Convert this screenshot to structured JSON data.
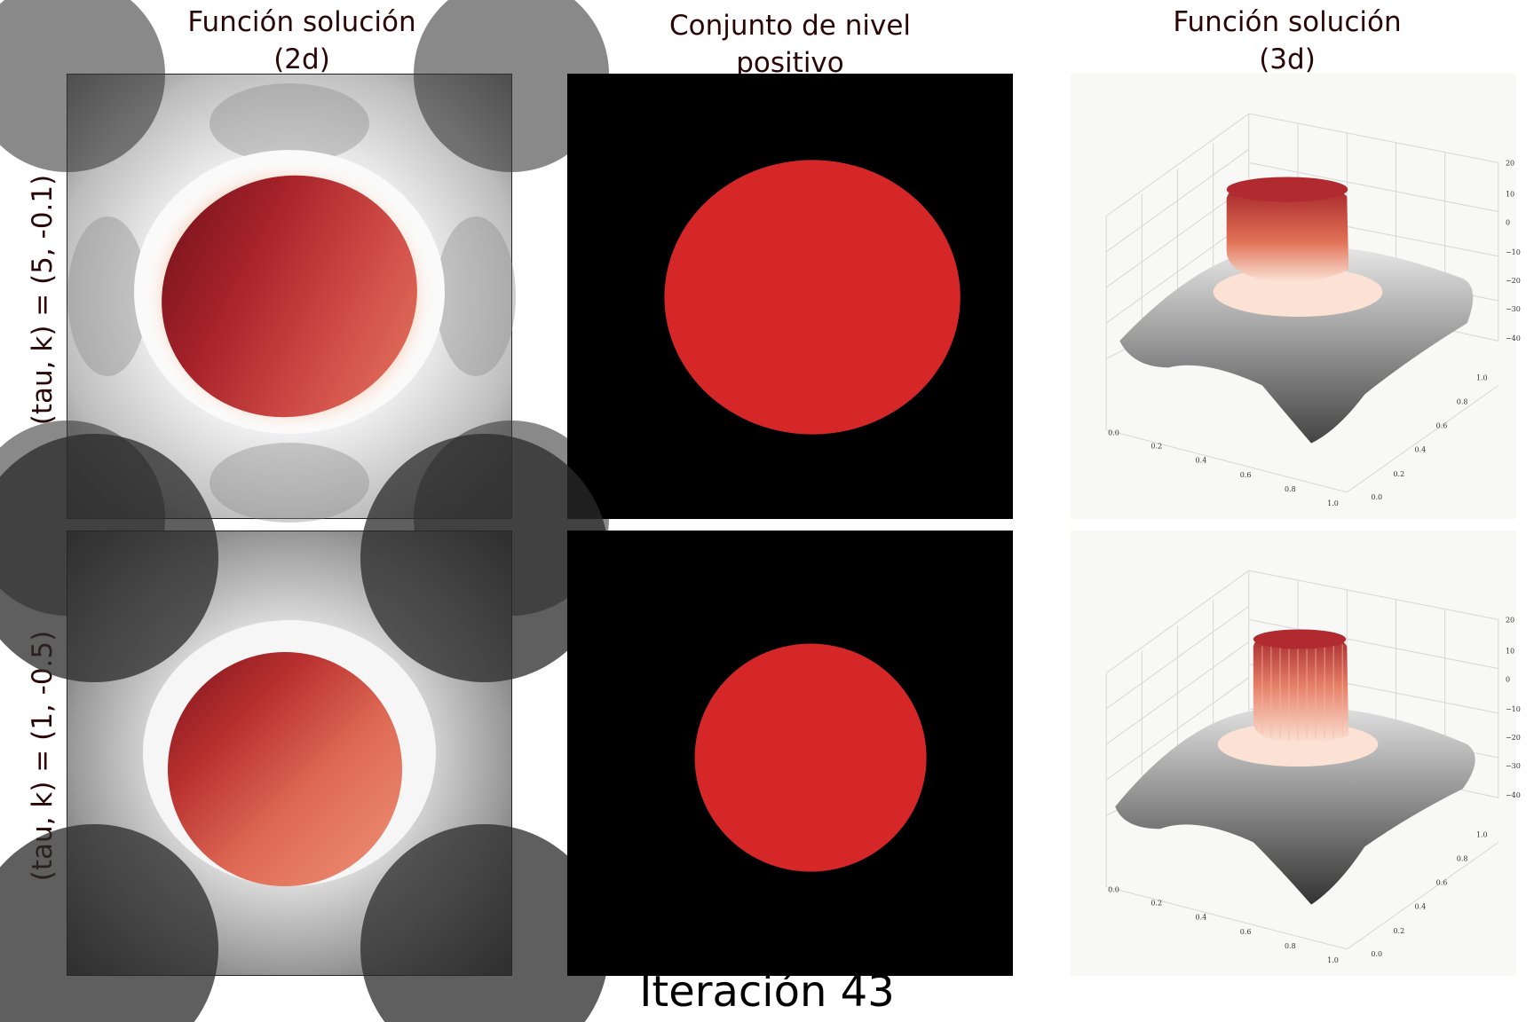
{
  "chart_data": [
    {
      "type": "heatmap",
      "title": "Función solución (2d)",
      "row_label": "(tau, k) = (5, -0.1)",
      "colormap": [
        "#222222",
        "#f4f4f4",
        "#f7c8b0",
        "#9e1a24"
      ]
    },
    {
      "type": "heatmap",
      "title": "Conjunto de nivel positivo",
      "colors": {
        "negative": "#000000",
        "positive": "#d62728"
      }
    },
    {
      "type": "surface",
      "title": "Función solución (3d)",
      "zticks": [
        "20",
        "10",
        "0",
        "−10",
        "−20",
        "−30",
        "−40"
      ],
      "xticks": [
        "0.0",
        "0.2",
        "0.4",
        "0.6",
        "0.8",
        "1.0"
      ],
      "yticks": [
        "0.0",
        "0.2",
        "0.4",
        "0.6",
        "0.8",
        "1.0"
      ]
    },
    {
      "type": "heatmap",
      "title": "Función solución (2d)",
      "row_label": "(tau, k) = (1, -0.5)"
    },
    {
      "type": "heatmap",
      "title": "Conjunto de nivel positivo"
    },
    {
      "type": "surface",
      "title": "Función solución (3d)"
    }
  ],
  "titles": {
    "col1": [
      "Función solución",
      "(2d)"
    ],
    "col2": [
      "Conjunto de nivel",
      "positivo"
    ],
    "col3": [
      "Función solución",
      "(3d)"
    ]
  },
  "row_labels": {
    "row1": "(tau, k) = (5, -0.1)",
    "row2": "(tau, k) = (1, -0.5)"
  },
  "ticks": {
    "z": [
      "20",
      "10",
      "0",
      "−10",
      "−20",
      "−30",
      "−40"
    ],
    "x": [
      "0.0",
      "0.2",
      "0.4",
      "0.6",
      "0.8",
      "1.0"
    ],
    "y": [
      "0.0",
      "0.2",
      "0.4",
      "0.6",
      "0.8",
      "1.0"
    ]
  },
  "iteration_label": "Iteración 43",
  "colors": {
    "dark": "#222222",
    "light": "#f4f4f4",
    "red_dark": "#9e1a24",
    "red_mid": "#d2504a",
    "red_light": "#e78066",
    "level_set_red": "#d62728"
  }
}
